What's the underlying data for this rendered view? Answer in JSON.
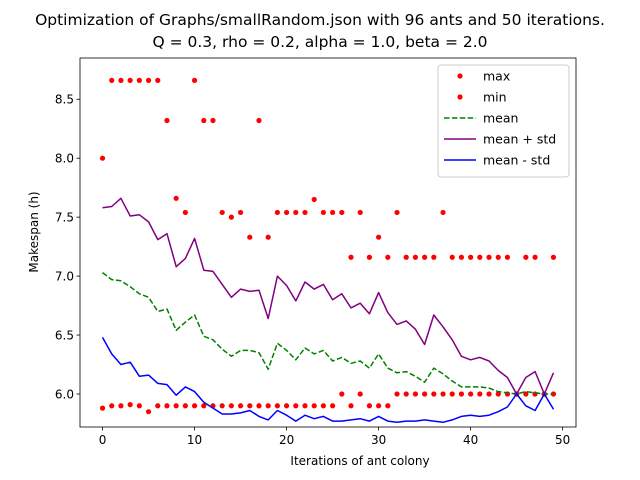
{
  "chart_data": {
    "type": "line",
    "title": "Optimization of Graphs/smallRandom.json with 96 ants and 50 iterations.",
    "subtitle": "Q = 0.3, rho = 0.2, alpha = 1.0, beta = 2.0",
    "xlabel": "Iterations of ant colony",
    "ylabel": "Makespan (h)",
    "xlim": [
      -2.45,
      51.45
    ],
    "ylim": [
      5.72,
      8.85
    ],
    "xticks": [
      0,
      10,
      20,
      30,
      40,
      50
    ],
    "yticks": [
      6.0,
      6.5,
      7.0,
      7.5,
      8.0,
      8.5
    ],
    "ytick_labels": [
      "6.0",
      "6.5",
      "7.0",
      "7.5",
      "8.0",
      "8.5"
    ],
    "legend_position": "top-right",
    "grid": false,
    "x": [
      0,
      1,
      2,
      3,
      4,
      5,
      6,
      7,
      8,
      9,
      10,
      11,
      12,
      13,
      14,
      15,
      16,
      17,
      18,
      19,
      20,
      21,
      22,
      23,
      24,
      25,
      26,
      27,
      28,
      29,
      30,
      31,
      32,
      33,
      34,
      35,
      36,
      37,
      38,
      39,
      40,
      41,
      42,
      43,
      44,
      45,
      46,
      47,
      48,
      49
    ],
    "series": [
      {
        "name": "max",
        "style": "points",
        "color": "#ff0000",
        "values": [
          8.0,
          8.66,
          8.66,
          8.66,
          8.66,
          8.66,
          8.66,
          8.32,
          7.66,
          7.54,
          8.66,
          8.32,
          8.32,
          7.54,
          7.5,
          7.54,
          7.33,
          8.32,
          7.33,
          7.54,
          7.54,
          7.54,
          7.54,
          7.65,
          7.54,
          7.54,
          7.54,
          7.16,
          7.54,
          7.16,
          7.33,
          7.16,
          7.54,
          7.16,
          7.16,
          7.16,
          7.16,
          7.54,
          7.16,
          7.16,
          7.16,
          7.16,
          7.16,
          7.16,
          7.16,
          6.0,
          7.16,
          7.16,
          6.0,
          7.16
        ]
      },
      {
        "name": "min",
        "style": "points",
        "color": "#ff0000",
        "values": [
          5.88,
          5.9,
          5.9,
          5.91,
          5.9,
          5.85,
          5.9,
          5.9,
          5.9,
          5.9,
          5.9,
          5.9,
          5.9,
          5.9,
          5.9,
          5.9,
          5.9,
          5.9,
          5.9,
          5.9,
          5.9,
          5.9,
          5.9,
          5.9,
          5.9,
          5.9,
          6.0,
          5.9,
          6.0,
          5.9,
          5.9,
          5.9,
          6.0,
          6.0,
          6.0,
          6.0,
          6.0,
          6.0,
          6.0,
          6.0,
          6.0,
          6.0,
          6.0,
          6.0,
          6.0,
          6.0,
          6.0,
          6.0,
          6.0,
          6.0
        ]
      },
      {
        "name": "mean",
        "style": "dashed",
        "color": "#008000",
        "values": [
          7.03,
          6.97,
          6.96,
          6.91,
          6.85,
          6.82,
          6.7,
          6.72,
          6.54,
          6.61,
          6.67,
          6.49,
          6.46,
          6.38,
          6.32,
          6.37,
          6.37,
          6.35,
          6.21,
          6.43,
          6.37,
          6.29,
          6.39,
          6.34,
          6.37,
          6.28,
          6.31,
          6.26,
          6.28,
          6.22,
          6.34,
          6.22,
          6.18,
          6.19,
          6.15,
          6.1,
          6.22,
          6.17,
          6.11,
          6.06,
          6.06,
          6.06,
          6.05,
          6.02,
          6.01,
          6.0,
          6.02,
          6.01,
          6.0,
          6.0
        ]
      },
      {
        "name": "mean + std",
        "style": "solid",
        "color": "#800080",
        "values": [
          7.58,
          7.59,
          7.66,
          7.51,
          7.52,
          7.46,
          7.31,
          7.36,
          7.08,
          7.15,
          7.32,
          7.05,
          7.04,
          6.93,
          6.82,
          6.89,
          6.87,
          6.88,
          6.64,
          7.0,
          6.92,
          6.79,
          6.95,
          6.89,
          6.93,
          6.8,
          6.85,
          6.73,
          6.77,
          6.68,
          6.86,
          6.69,
          6.59,
          6.62,
          6.55,
          6.42,
          6.67,
          6.57,
          6.46,
          6.32,
          6.29,
          6.31,
          6.28,
          6.2,
          6.14,
          6.0,
          6.14,
          6.19,
          6.0,
          6.18
        ]
      },
      {
        "name": "mean - std",
        "style": "solid",
        "color": "#0000ff",
        "values": [
          6.48,
          6.34,
          6.25,
          6.27,
          6.15,
          6.16,
          6.09,
          6.08,
          5.99,
          6.06,
          6.02,
          5.93,
          5.88,
          5.83,
          5.83,
          5.84,
          5.86,
          5.81,
          5.78,
          5.86,
          5.82,
          5.77,
          5.82,
          5.79,
          5.81,
          5.77,
          5.77,
          5.78,
          5.79,
          5.77,
          5.81,
          5.77,
          5.76,
          5.77,
          5.77,
          5.78,
          5.77,
          5.76,
          5.78,
          5.81,
          5.82,
          5.81,
          5.82,
          5.85,
          5.89,
          6.0,
          5.9,
          5.86,
          6.0,
          5.87
        ]
      }
    ]
  }
}
